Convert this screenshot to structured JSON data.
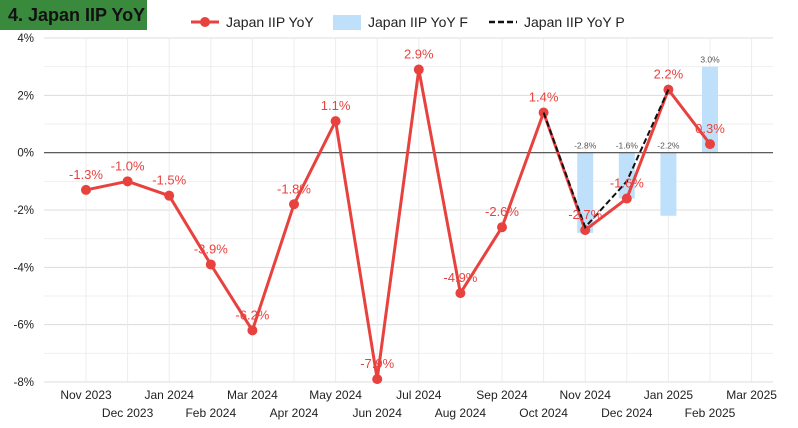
{
  "title": "4. Japan IIP YoY",
  "legend": [
    {
      "name": "Japan IIP YoY",
      "key": "actual"
    },
    {
      "name": "Japan IIP YoY F",
      "key": "forecast"
    },
    {
      "name": "Japan IIP YoY P",
      "key": "preliminary"
    }
  ],
  "colors": {
    "actual": "#e8423f",
    "forecast": "#bfe0fb",
    "preliminary": "#111111",
    "title_bg": "#3a8a3e"
  },
  "chart_data": {
    "type": "line",
    "title": "4. Japan IIP YoY",
    "ylim": [
      -8,
      4
    ],
    "y_ticks": [
      "4%",
      "2%",
      "0%",
      "-2%",
      "-4%",
      "-6%",
      "-8%"
    ],
    "grid": true,
    "legend_position": "top",
    "x_ticks": [
      "Nov 2023",
      "Dec 2023",
      "Jan 2024",
      "Feb 2024",
      "Mar 2024",
      "Apr 2024",
      "May 2024",
      "Jun 2024",
      "Jul 2024",
      "Aug 2024",
      "Sep 2024",
      "Oct 2024",
      "Nov 2024",
      "Dec 2024",
      "Jan 2025",
      "Feb 2025",
      "Mar 2025"
    ],
    "series": [
      {
        "name": "Japan IIP YoY",
        "type": "line",
        "x": [
          "Nov 2023",
          "Dec 2023",
          "Jan 2024",
          "Feb 2024",
          "Mar 2024",
          "Apr 2024",
          "May 2024",
          "Jun 2024",
          "Jul 2024",
          "Aug 2024",
          "Sep 2024",
          "Oct 2024",
          "Nov 2024",
          "Dec 2024",
          "Jan 2025",
          "Feb 2025"
        ],
        "values": [
          -1.3,
          -1.0,
          -1.5,
          -3.9,
          -6.2,
          -1.8,
          1.1,
          -7.9,
          2.9,
          -4.9,
          -2.6,
          1.4,
          -2.7,
          -1.6,
          2.2,
          0.3
        ],
        "labels": [
          "-1.3%",
          "-1.0%",
          "-1.5%",
          "-3.9%",
          "-6.2%",
          "-1.8%",
          "1.1%",
          "-7.9%",
          "2.9%",
          "-4.9%",
          "-2.6%",
          "1.4%",
          "-2.7%",
          "-1.6%",
          "2.2%",
          "0.3%"
        ]
      },
      {
        "name": "Japan IIP YoY F",
        "type": "bar",
        "x": [
          "Nov 2024",
          "Dec 2024",
          "Jan 2025",
          "Feb 2025"
        ],
        "values": [
          -2.8,
          -1.6,
          -2.2,
          3.0
        ],
        "labels": [
          "-2.8%",
          "-1.6%",
          "-2.2%",
          "3.0%"
        ]
      },
      {
        "name": "Japan IIP YoY P",
        "type": "line-dashed",
        "x": [
          "Oct 2024",
          "Nov 2024",
          "Dec 2024",
          "Jan 2025"
        ],
        "values": [
          1.4,
          -2.6,
          -1.0,
          2.2
        ]
      }
    ]
  }
}
